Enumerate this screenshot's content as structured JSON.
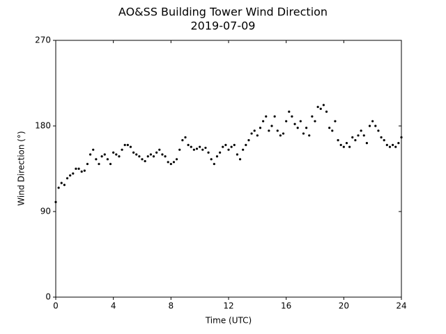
{
  "chart_data": {
    "type": "scatter",
    "title": "AO&SS Building Tower Wind Direction",
    "subtitle": "2019-07-09",
    "x_label": "Time (UTC)",
    "y_label": "Wind Direction (°)",
    "xlim": [
      0,
      24
    ],
    "xticks": [
      0,
      4,
      8,
      12,
      16,
      20,
      24
    ],
    "ylim": [
      0,
      270
    ],
    "yticks": [
      0,
      90,
      180,
      270
    ],
    "grid": false,
    "series": [
      {
        "name": "Wind Direction",
        "color": "#000000",
        "x": [
          0,
          0.2,
          0.4,
          0.6,
          0.8,
          1,
          1.2,
          1.4,
          1.6,
          1.8,
          2,
          2.2,
          2.4,
          2.6,
          2.8,
          3,
          3.2,
          3.4,
          3.6,
          3.8,
          4,
          4.2,
          4.4,
          4.6,
          4.8,
          5,
          5.2,
          5.4,
          5.6,
          5.8,
          6,
          6.2,
          6.4,
          6.6,
          6.8,
          7,
          7.2,
          7.4,
          7.6,
          7.8,
          8,
          8.2,
          8.4,
          8.6,
          8.8,
          9,
          9.2,
          9.4,
          9.6,
          9.8,
          10,
          10.2,
          10.4,
          10.6,
          10.8,
          11,
          11.2,
          11.4,
          11.6,
          11.8,
          12,
          12.2,
          12.4,
          12.6,
          12.8,
          13,
          13.2,
          13.4,
          13.6,
          13.8,
          14,
          14.2,
          14.4,
          14.6,
          14.8,
          15,
          15.2,
          15.4,
          15.6,
          15.8,
          16,
          16.2,
          16.4,
          16.6,
          16.8,
          17,
          17.2,
          17.4,
          17.6,
          17.8,
          18,
          18.2,
          18.4,
          18.6,
          18.8,
          19,
          19.2,
          19.4,
          19.6,
          19.8,
          20,
          20.2,
          20.4,
          20.6,
          20.8,
          21,
          21.2,
          21.4,
          21.6,
          21.8,
          22,
          22.2,
          22.4,
          22.6,
          22.8,
          23,
          23.2,
          23.4,
          23.6,
          23.8,
          24
        ],
        "values": [
          100,
          115,
          120,
          118,
          125,
          128,
          130,
          135,
          135,
          132,
          133,
          140,
          150,
          155,
          145,
          140,
          148,
          150,
          145,
          140,
          152,
          150,
          148,
          155,
          160,
          160,
          158,
          152,
          150,
          148,
          145,
          143,
          148,
          150,
          148,
          152,
          155,
          150,
          148,
          142,
          140,
          142,
          145,
          155,
          165,
          168,
          160,
          158,
          155,
          156,
          158,
          155,
          157,
          152,
          145,
          140,
          148,
          152,
          158,
          160,
          155,
          158,
          160,
          150,
          145,
          155,
          160,
          165,
          172,
          175,
          170,
          178,
          185,
          190,
          175,
          180,
          190,
          175,
          170,
          172,
          185,
          195,
          190,
          182,
          178,
          185,
          172,
          178,
          170,
          190,
          185,
          200,
          198,
          202,
          195,
          178,
          175,
          185,
          165,
          160,
          158,
          162,
          158,
          168,
          165,
          170,
          175,
          170,
          162,
          180,
          185,
          180,
          175,
          168,
          165,
          160,
          158,
          160,
          158,
          162,
          168
        ]
      }
    ]
  }
}
